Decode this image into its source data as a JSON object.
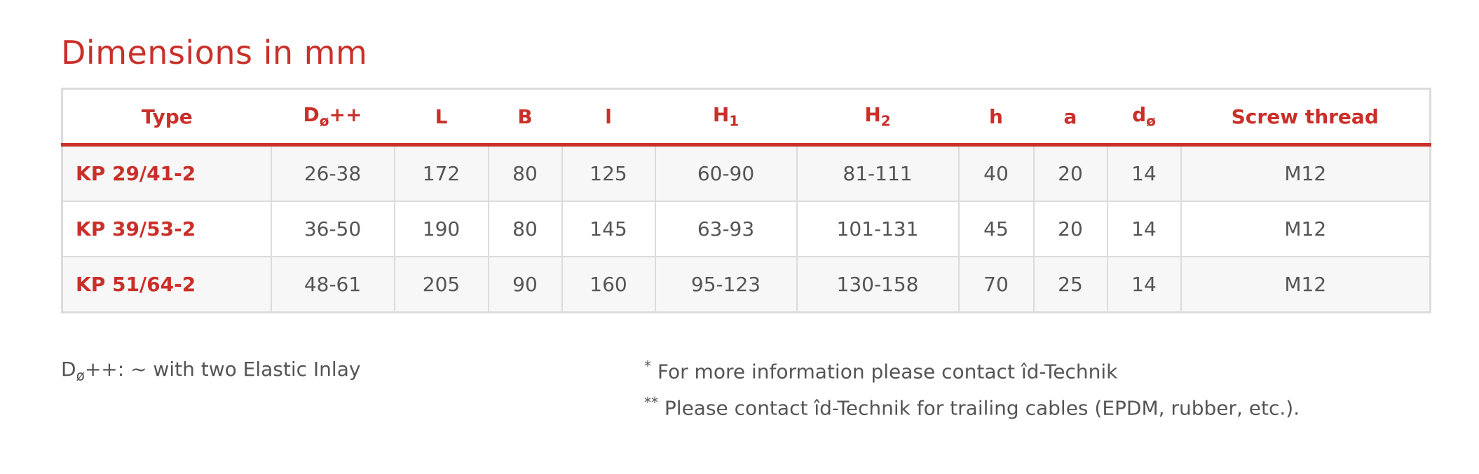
{
  "title": "Dimensions in mm",
  "colors": {
    "accent": "#c9302a",
    "text": "#555555",
    "row_alt": "#f7f7f7",
    "border": "#dcdcdc"
  },
  "table": {
    "headers": [
      {
        "main": "Type",
        "sub": ""
      },
      {
        "main": "D",
        "sub": "ø",
        "suffix": "++"
      },
      {
        "main": "L",
        "sub": ""
      },
      {
        "main": "B",
        "sub": ""
      },
      {
        "main": "l",
        "sub": ""
      },
      {
        "main": "H",
        "sub": "1"
      },
      {
        "main": "H",
        "sub": "2"
      },
      {
        "main": "h",
        "sub": ""
      },
      {
        "main": "a",
        "sub": ""
      },
      {
        "main": "d",
        "sub": "ø"
      },
      {
        "main": "Screw thread",
        "sub": ""
      }
    ],
    "rows": [
      [
        "KP 29/41-2",
        "26-38",
        "172",
        "80",
        "125",
        "60-90",
        "81-111",
        "40",
        "20",
        "14",
        "M12"
      ],
      [
        "KP 39/53-2",
        "36-50",
        "190",
        "80",
        "145",
        "63-93",
        "101-131",
        "45",
        "20",
        "14",
        "M12"
      ],
      [
        "KP 51/64-2",
        "48-61",
        "205",
        "90",
        "160",
        "95-123",
        "130-158",
        "70",
        "25",
        "14",
        "M12"
      ]
    ]
  },
  "notes": {
    "d_note": {
      "main": "D",
      "sub": "ø",
      "text": "++: ~ with two Elastic Inlay"
    },
    "star1": {
      "mark": "*",
      "text": " For more information please contact îd-Technik"
    },
    "star2": {
      "mark": "**",
      "text": " Please contact îd-Technik for trailing cables (EPDM, rubber, etc.)."
    }
  }
}
